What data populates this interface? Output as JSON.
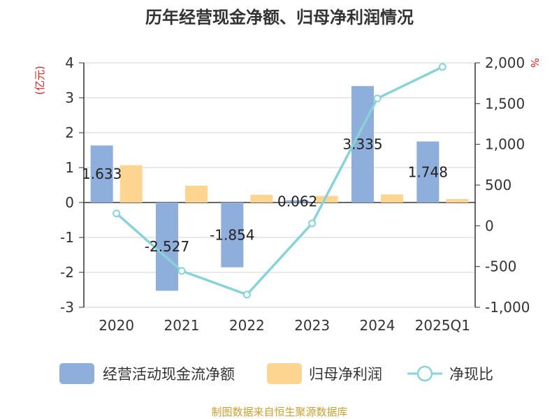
{
  "chart_data": {
    "type": "bar+line",
    "title": "历年经营现金净额、归母净利润情况",
    "ylabel_left": "(亿元)",
    "ylabel_right": "%",
    "categories": [
      "2020",
      "2021",
      "2022",
      "2023",
      "2024",
      "2025Q1"
    ],
    "ylim_left": [
      -3,
      4
    ],
    "yticks_left": [
      "4",
      "3",
      "2",
      "1",
      "0",
      "-1",
      "-2",
      "-3"
    ],
    "ylim_right": [
      -1000,
      2000
    ],
    "yticks_right": [
      "2,000",
      "1,500",
      "1,000",
      "500",
      "0",
      "-500",
      "-1,000"
    ],
    "series": [
      {
        "name": "经营活动现金流净额",
        "kind": "bar",
        "values": [
          1.633,
          -2.527,
          -1.854,
          0.062,
          3.335,
          1.748
        ],
        "labels": [
          "1.633",
          "-2.527",
          "-1.854",
          "0.062",
          "3.335",
          "1.748"
        ]
      },
      {
        "name": "归母净利润",
        "kind": "bar",
        "values": [
          1.07,
          0.48,
          0.22,
          0.19,
          0.23,
          0.1
        ]
      },
      {
        "name": "净现比",
        "kind": "line",
        "axis": "right",
        "values": [
          152,
          -553,
          -845,
          30,
          1563,
          1950
        ]
      }
    ],
    "colors": {
      "cash_flow": "#8eaedb",
      "net_profit": "#fdd591",
      "ratio": "#88d2d9",
      "title": "#333333",
      "left_unit": "#e02020",
      "right_unit": "#e02020",
      "source": "#c8a032"
    },
    "legend_position": "bottom",
    "grid": true
  },
  "footer": {
    "source": "制图数据来自恒生聚源数据库"
  }
}
